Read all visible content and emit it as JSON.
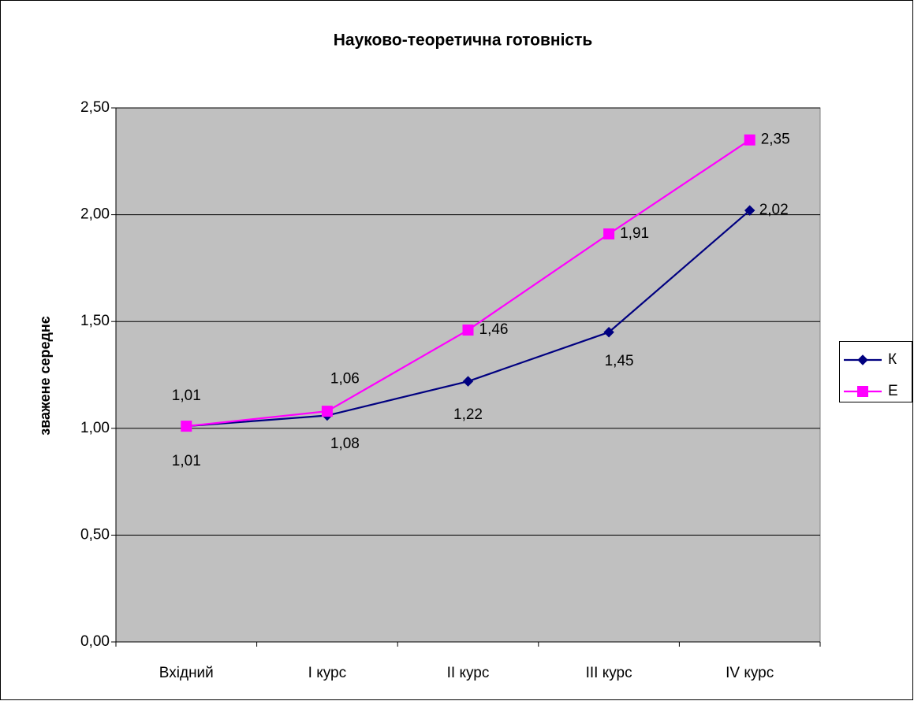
{
  "chart_data": {
    "type": "line",
    "title": "Науково-теоретична готовність",
    "y_label": "зважене середнє",
    "categories": [
      "Вхідний",
      "I курс",
      "II курс",
      "III курс",
      "IV курс"
    ],
    "series": [
      {
        "name": "К",
        "color": "#000080",
        "marker": "diamond",
        "values": [
          1.01,
          1.06,
          1.22,
          1.45,
          2.02
        ],
        "value_labels": [
          "1,01",
          "1,06",
          "1,22",
          "1,45",
          "2,02"
        ]
      },
      {
        "name": "Е",
        "color": "#ff00ff",
        "marker": "square",
        "values": [
          1.01,
          1.08,
          1.46,
          1.91,
          2.35
        ],
        "value_labels": [
          "1,01",
          "1,08",
          "1,46",
          "1,91",
          "2,35"
        ]
      }
    ],
    "ylim": [
      0,
      2.5
    ],
    "yticks": [
      {
        "value": 0,
        "label": "0,00"
      },
      {
        "value": 0.5,
        "label": "0,50"
      },
      {
        "value": 1,
        "label": "1,00"
      },
      {
        "value": 1.5,
        "label": "1,50"
      },
      {
        "value": 2,
        "label": "2,00"
      },
      {
        "value": 2.5,
        "label": "2,50"
      }
    ],
    "grid": true,
    "legend": "right",
    "plot_background": "#c0c0c0"
  }
}
